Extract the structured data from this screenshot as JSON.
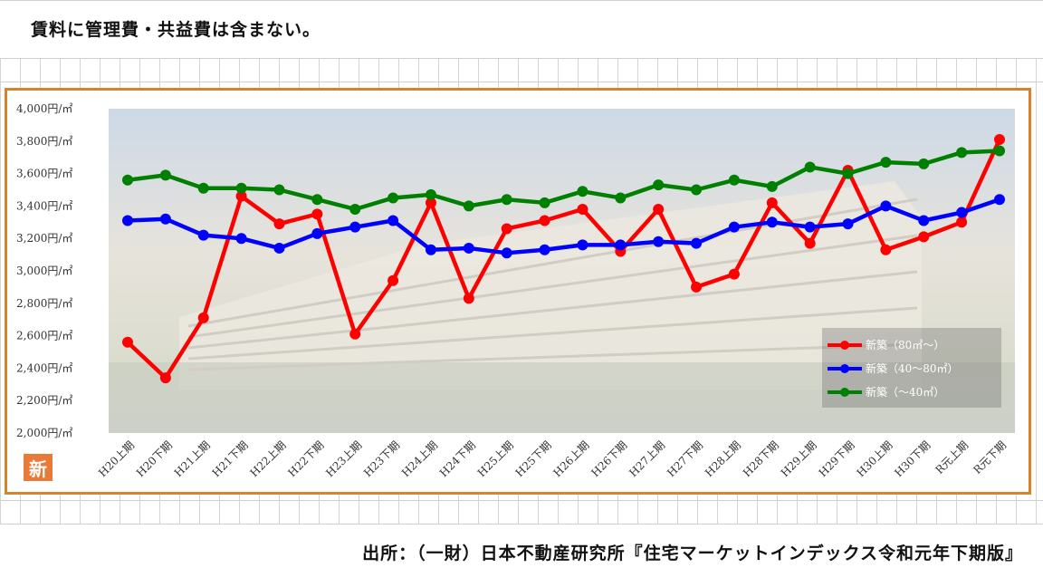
{
  "note": "賃料に管理費・共益費は含まない。",
  "source": "出所：（一財）日本不動産研究所『住宅マーケットインデックス令和元年下期版』",
  "logo_text": "新",
  "colors": {
    "frame": "#d9822b",
    "series_large": "#ff0000",
    "series_medium": "#0000ff",
    "series_small": "#008000"
  },
  "chart_data": {
    "type": "line",
    "ylim": [
      2000,
      4000
    ],
    "yticks": [
      {
        "value": 4000,
        "label": "4,000円/㎡"
      },
      {
        "value": 3800,
        "label": "3,800円/㎡"
      },
      {
        "value": 3600,
        "label": "3,600円/㎡"
      },
      {
        "value": 3400,
        "label": "3,400円/㎡"
      },
      {
        "value": 3200,
        "label": "3,200円/㎡"
      },
      {
        "value": 3000,
        "label": "3,000円/㎡"
      },
      {
        "value": 2800,
        "label": "2,800円/㎡"
      },
      {
        "value": 2600,
        "label": "2,600円/㎡"
      },
      {
        "value": 2400,
        "label": "2,400円/㎡"
      },
      {
        "value": 2200,
        "label": "2,200円/㎡"
      },
      {
        "value": 2000,
        "label": "2,000円/㎡"
      }
    ],
    "categories": [
      "H20上期",
      "H20下期",
      "H21上期",
      "H21下期",
      "H22上期",
      "H22下期",
      "H23上期",
      "H23下期",
      "H24上期",
      "H24下期",
      "H25上期",
      "H25下期",
      "H26上期",
      "H26下期",
      "H27上期",
      "H27下期",
      "H28上期",
      "H28下期",
      "H29上期",
      "H29下期",
      "H30上期",
      "H30下期",
      "R元上期",
      "R元下期"
    ],
    "legend_position": "bottom-right",
    "series": [
      {
        "name": "新築（80㎡～）",
        "color": "#ff0000",
        "values": [
          2560,
          2340,
          2710,
          3460,
          3290,
          3350,
          2610,
          2940,
          3420,
          2830,
          3260,
          3310,
          3380,
          3120,
          3380,
          2900,
          2980,
          3420,
          3170,
          3620,
          3130,
          3210,
          3300,
          3810
        ]
      },
      {
        "name": "新築（40～80㎡）",
        "color": "#0000ff",
        "values": [
          3310,
          3320,
          3220,
          3200,
          3140,
          3230,
          3270,
          3310,
          3130,
          3140,
          3110,
          3130,
          3160,
          3160,
          3180,
          3170,
          3270,
          3300,
          3270,
          3290,
          3400,
          3310,
          3360,
          3440
        ]
      },
      {
        "name": "新築（～40㎡）",
        "color": "#008000",
        "values": [
          3560,
          3590,
          3510,
          3510,
          3500,
          3440,
          3380,
          3450,
          3470,
          3400,
          3440,
          3420,
          3490,
          3450,
          3530,
          3500,
          3560,
          3520,
          3640,
          3600,
          3670,
          3660,
          3730,
          3740
        ]
      }
    ]
  }
}
